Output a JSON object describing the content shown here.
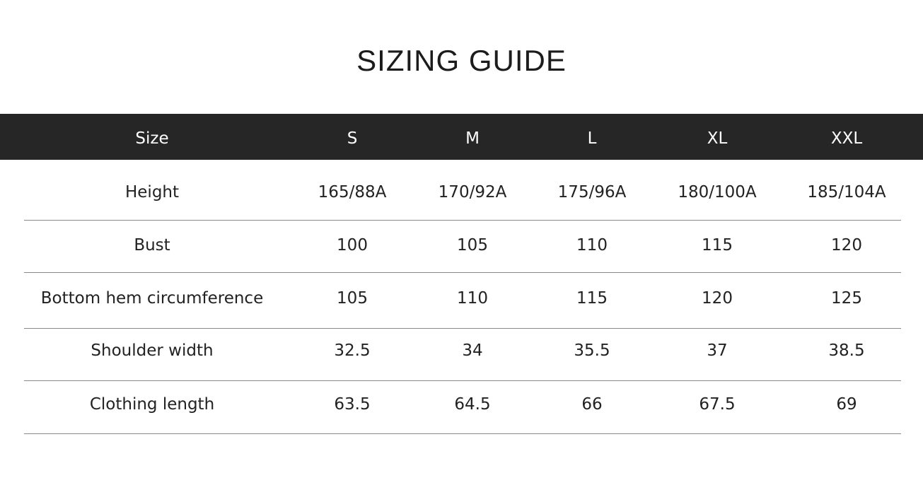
{
  "title": "SIZING GUIDE",
  "headers": [
    "Size",
    "S",
    "M",
    "L",
    "XL",
    "XXL"
  ],
  "rows": [
    [
      "Height",
      "165/88A",
      "170/92A",
      "175/96A",
      "180/100A",
      "185/104A"
    ],
    [
      "Bust",
      "100",
      "105",
      "110",
      "115",
      "120"
    ],
    [
      "Bottom hem circumference",
      "105",
      "110",
      "115",
      "120",
      "125"
    ],
    [
      "Shoulder width",
      "32.5",
      "34",
      "35.5",
      "37",
      "38.5"
    ],
    [
      "Clothing length",
      "63.5",
      "64.5",
      "66",
      "67.5",
      "69"
    ]
  ]
}
